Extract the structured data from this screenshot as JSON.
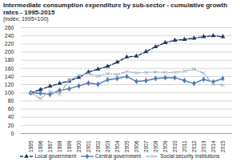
{
  "chart_data": {
    "type": "line",
    "title": "Intermediate consumption expenditure by sub-sector - cumulative growth rates - 1995-2015",
    "subtitle": "(index; 1995=100)",
    "categories": [
      "1995",
      "1996",
      "1997",
      "1998",
      "1999",
      "2000",
      "2001",
      "2002",
      "2003",
      "2004",
      "2005",
      "2006",
      "2007",
      "2008",
      "2009",
      "2010",
      "2011",
      "2012",
      "2013",
      "2014",
      "2015"
    ],
    "series": [
      {
        "name": "Local government",
        "color": "#1f3864",
        "marker": "triangle",
        "line_style": "dashed",
        "values": [
          100,
          108,
          116,
          123,
          129,
          138,
          151,
          158,
          165,
          175,
          188,
          190,
          201,
          213,
          223,
          229,
          231,
          234,
          238,
          240,
          238
        ]
      },
      {
        "name": "Central government",
        "color": "#4a7ab5",
        "marker": "diamond",
        "line_style": "solid",
        "values": [
          100,
          99,
          96,
          106,
          110,
          117,
          124,
          121,
          132,
          135,
          140,
          128,
          130,
          135,
          137,
          137,
          130,
          123,
          133,
          127,
          135
        ]
      },
      {
        "name": "Social security institutions",
        "color": "#a6b5cc",
        "marker": "times",
        "line_style": "dashdot",
        "values": [
          100,
          86,
          103,
          97,
          132,
          143,
          147,
          141,
          147,
          145,
          152,
          149,
          150,
          151,
          150,
          150,
          153,
          158,
          148,
          122,
          119
        ]
      }
    ],
    "ylim": [
      0,
      260
    ],
    "yticks": [
      0,
      20,
      40,
      60,
      80,
      100,
      120,
      140,
      160,
      180,
      200,
      220,
      240,
      260
    ],
    "grid": true,
    "legend": "bottom"
  }
}
